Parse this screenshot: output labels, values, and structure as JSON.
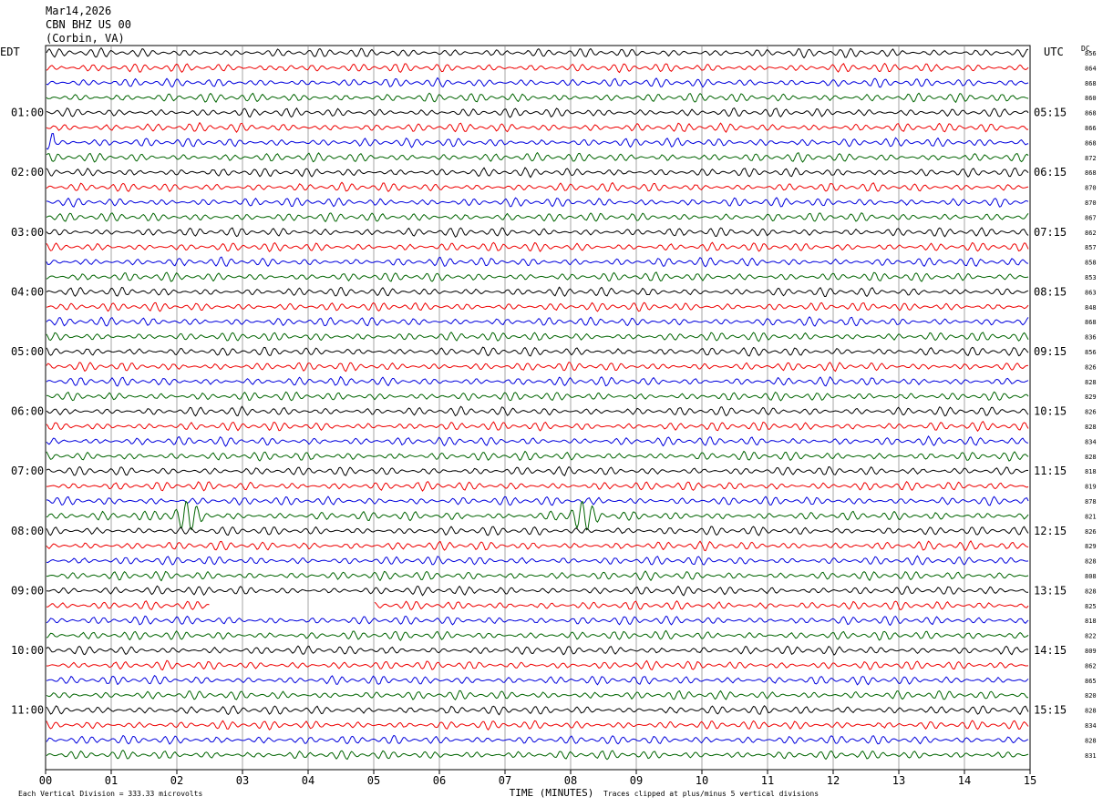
{
  "header": {
    "date": "Mar14,2026",
    "station": "CBN BHZ US 00",
    "location": "(Corbin, VA)"
  },
  "left_axis_title": "EDT",
  "right_axis_title": "UTC",
  "dc_title": "DC",
  "footer": {
    "scale_note": "Each Vertical Division =  333.33 microvolts",
    "clip_note": "Traces clipped at plus/minus 5 vertical divisions"
  },
  "colors": {
    "black": "#000000",
    "red": "#ee0000",
    "blue": "#0000dd",
    "green": "#006400",
    "grid": "#808080"
  },
  "chart_data": {
    "type": "line",
    "title": "",
    "xlabel": "TIME (MINUTES)",
    "ylabel": "",
    "x_ticks": [
      "00",
      "01",
      "02",
      "03",
      "04",
      "05",
      "06",
      "07",
      "08",
      "09",
      "10",
      "11",
      "12",
      "13",
      "14",
      "15"
    ],
    "xlim": [
      0,
      15
    ],
    "traces_per_hour": 4,
    "trace_minutes": 15,
    "trace_colors_cycle": [
      "black",
      "red",
      "blue",
      "green"
    ],
    "left_hour_labels": [
      "01:00",
      "02:00",
      "03:00",
      "04:00",
      "05:00",
      "06:00",
      "07:00",
      "08:00",
      "09:00",
      "10:00",
      "11:00"
    ],
    "right_hour_labels": [
      "05:15",
      "06:15",
      "07:15",
      "08:15",
      "09:15",
      "10:15",
      "11:15",
      "12:15",
      "13:15",
      "14:15",
      "15:15"
    ],
    "dc_offsets": [
      "856",
      "864",
      "868",
      "860",
      "868",
      "866",
      "868",
      "872",
      "868",
      "870",
      "870",
      "867",
      "862",
      "857",
      "858",
      "853",
      "863",
      "848",
      "868",
      "836",
      "856",
      "826",
      "828",
      "829",
      "826",
      "828",
      "834",
      "828",
      "818",
      "819",
      "878",
      "821",
      "826",
      "829",
      "828",
      "808",
      "828",
      "825",
      "818",
      "822",
      "809",
      "862",
      "865",
      "820",
      "828",
      "834",
      "828",
      "831"
    ],
    "events": [
      {
        "trace": 1,
        "minute": 3.7,
        "note": "spike"
      },
      {
        "trace": 6,
        "minute": 0.05,
        "note": "burst"
      },
      {
        "trace": 31,
        "minute_start": 1.6,
        "minute_end": 2.6,
        "note": "large burst"
      },
      {
        "trace": 31,
        "minute_start": 7.6,
        "minute_end": 8.6,
        "note": "large burst"
      },
      {
        "trace": 37,
        "gap_start_minute": 2.5,
        "gap_end_minute": 5.0,
        "note": "data gap"
      }
    ]
  }
}
